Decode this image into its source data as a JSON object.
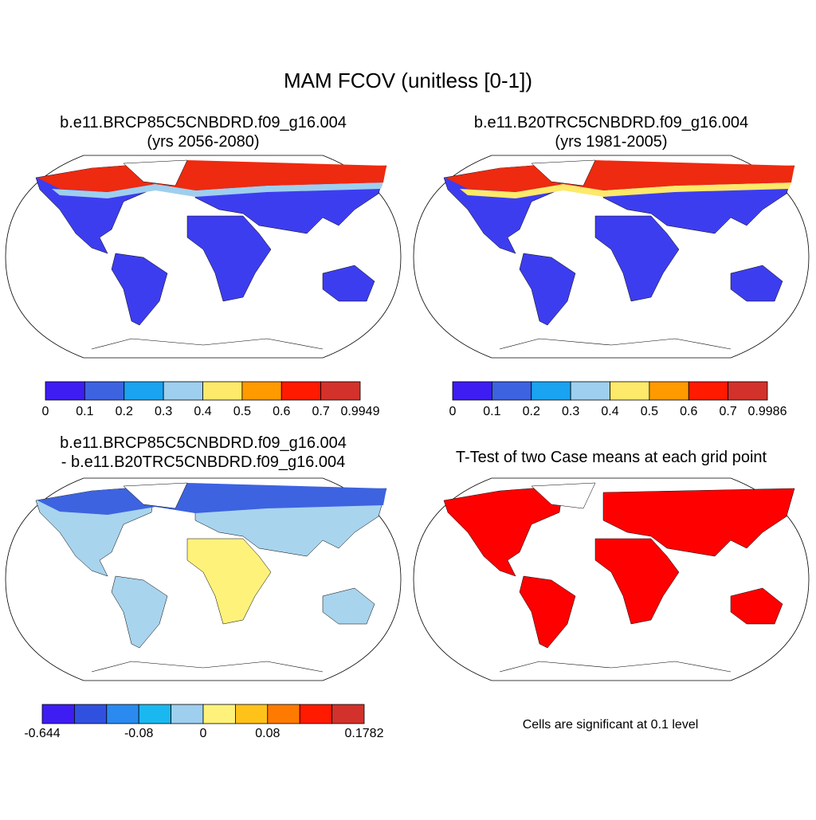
{
  "title": "MAM FCOV (unitless [0-1])",
  "panels": [
    {
      "title": "b.e11.BRCP85C5CNBDRD.f09_g16.004",
      "subtitle": "(yrs 2056-2080)",
      "colorbar": {
        "colors": [
          "#3d1df2",
          "#3d63e0",
          "#1aa3f0",
          "#9ecfee",
          "#fde96a",
          "#ff9a00",
          "#ff1a00",
          "#d3312b"
        ],
        "labels": [
          0,
          0.1,
          0.2,
          0.3,
          0.4,
          0.5,
          0.6,
          0.7,
          0.9949
        ]
      }
    },
    {
      "title": "b.e11.B20TRC5CNBDRD.f09_g16.004",
      "subtitle": "(yrs 1981-2005)",
      "colorbar": {
        "colors": [
          "#3d1df2",
          "#3d63e0",
          "#1aa3f0",
          "#9ecfee",
          "#fde96a",
          "#ff9a00",
          "#ff1a00",
          "#d3312b"
        ],
        "labels": [
          0,
          0.1,
          0.2,
          0.3,
          0.4,
          0.5,
          0.6,
          0.7,
          0.9986
        ]
      }
    },
    {
      "title": "b.e11.BRCP85C5CNBDRD.f09_g16.004",
      "subtitle": "- b.e11.B20TRC5CNBDRD.f09_g16.004",
      "colorbar": {
        "colors": [
          "#3d1df2",
          "#3050e0",
          "#2a8af0",
          "#1ab8f0",
          "#9ecfee",
          "#fff27a",
          "#ffc21a",
          "#ff7a00",
          "#ff1a00",
          "#d3312b"
        ],
        "labels": [
          -0.644,
          null,
          null,
          -0.08,
          null,
          0,
          null,
          0.08,
          null,
          null,
          0.1782
        ]
      }
    },
    {
      "title": "T-Test of two Case means at each grid point",
      "note": "Cells are significant at 0.1 level"
    }
  ]
}
